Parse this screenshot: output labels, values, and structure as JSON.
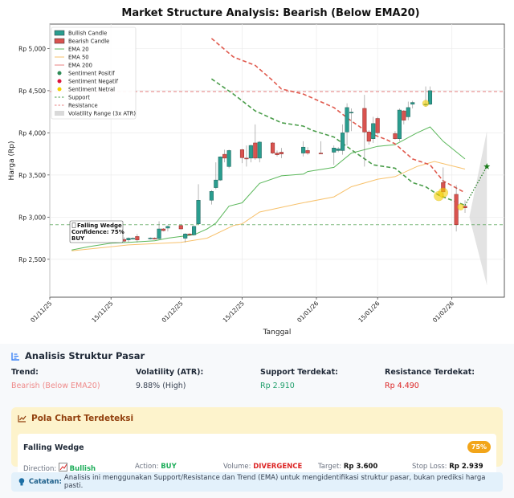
{
  "chart_data": {
    "type": "candlestick",
    "title": "Market Structure Analysis: Bearish (Below EMA20)",
    "xlabel": "Tanggal",
    "ylabel": "Harga (Rp)",
    "xlim": [
      "2025-11-01",
      "2026-02-13"
    ],
    "ylim": [
      2050,
      5290
    ],
    "grid": true,
    "legend_position": "top-left",
    "x_ticks": [
      {
        "date": "2025-11-01",
        "label": "01/11/25"
      },
      {
        "date": "2025-11-15",
        "label": "15/11/25"
      },
      {
        "date": "2025-12-01",
        "label": "01/12/25"
      },
      {
        "date": "2025-12-15",
        "label": "15/12/25"
      },
      {
        "date": "2026-01-01",
        "label": "01/01/26"
      },
      {
        "date": "2026-01-15",
        "label": "15/01/26"
      },
      {
        "date": "2026-02-01",
        "label": "01/02/26"
      }
    ],
    "y_ticks": [
      {
        "value": 2500,
        "label": "Rp 2,500"
      },
      {
        "value": 3000,
        "label": "Rp 3,000"
      },
      {
        "value": 3500,
        "label": "Rp 3,500"
      },
      {
        "value": 4000,
        "label": "Rp 4,000"
      },
      {
        "value": 4500,
        "label": "Rp 4,500"
      },
      {
        "value": 5000,
        "label": "Rp 5,000"
      }
    ],
    "colors": {
      "bull": "#2a9d8f",
      "bear": "#d9534f",
      "ema20": "#5cb85c",
      "ema50": "#f7c16b",
      "ema200": "#e05a4e",
      "support": "#4a9d4a",
      "resistance": "#e88080",
      "neutral": "#f5d000",
      "positive": "#2e8b57",
      "negative": "#dc143c",
      "volatility": "#d9d9d9",
      "target": "#1a7a1a"
    },
    "legend": [
      {
        "label": "Bullish Candle",
        "kind": "patch",
        "color": "#2a9d8f"
      },
      {
        "label": "Bearish Candle",
        "kind": "patch",
        "color": "#d9534f"
      },
      {
        "label": "EMA 20",
        "kind": "line",
        "color": "#5cb85c"
      },
      {
        "label": "EMA 50",
        "kind": "line",
        "color": "#f7c16b"
      },
      {
        "label": "EMA 200",
        "kind": "line",
        "color": "#e88080"
      },
      {
        "label": "Sentiment Positif",
        "kind": "dot",
        "color": "#2e8b57"
      },
      {
        "label": "Sentiment Negatif",
        "kind": "dot",
        "color": "#dc143c"
      },
      {
        "label": "Sentiment Netral",
        "kind": "dot",
        "color": "#f5d000"
      },
      {
        "label": "Support",
        "kind": "dash",
        "color": "#4a9d4a"
      },
      {
        "label": "Resistance",
        "kind": "dash",
        "color": "#e88080"
      },
      {
        "label": "Volatility Range (3x ATR)",
        "kind": "patch",
        "color": "#d9d9d9"
      }
    ],
    "candles": [
      [
        "2025-11-18",
        2735,
        2760,
        2700,
        2715
      ],
      [
        "2025-11-19",
        2730,
        2760,
        2700,
        2750
      ],
      [
        "2025-11-20",
        2745,
        2760,
        2735,
        2748
      ],
      [
        "2025-11-21",
        2770,
        2800,
        2700,
        2730
      ],
      [
        "2025-11-24",
        2745,
        2760,
        2735,
        2752
      ],
      [
        "2025-11-25",
        2750,
        2760,
        2735,
        2740
      ],
      [
        "2025-11-26",
        2745,
        2950,
        2740,
        2860
      ],
      [
        "2025-11-27",
        2860,
        2870,
        2830,
        2840
      ],
      [
        "2025-11-28",
        2870,
        2900,
        2830,
        2890
      ],
      [
        "2025-12-01",
        2900,
        2910,
        2855,
        2860
      ],
      [
        "2025-12-02",
        2750,
        2810,
        2700,
        2800
      ],
      [
        "2025-12-03",
        2800,
        2810,
        2780,
        2790
      ],
      [
        "2025-12-04",
        2790,
        2900,
        2780,
        2890
      ],
      [
        "2025-12-05",
        2920,
        3390,
        2910,
        3200
      ],
      [
        "2025-12-08",
        3200,
        3320,
        3150,
        3305
      ],
      [
        "2025-12-09",
        3350,
        3650,
        3330,
        3440
      ],
      [
        "2025-12-10",
        3440,
        3720,
        3430,
        3715
      ],
      [
        "2025-12-11",
        3745,
        3800,
        3650,
        3700
      ],
      [
        "2025-12-12",
        3600,
        3800,
        3580,
        3790
      ],
      [
        "2025-12-15",
        3800,
        3810,
        3640,
        3705
      ],
      [
        "2025-12-16",
        3700,
        3850,
        3600,
        3690
      ],
      [
        "2025-12-17",
        3700,
        3860,
        3650,
        3850
      ],
      [
        "2025-12-18",
        3880,
        4100,
        3680,
        3700
      ],
      [
        "2025-12-19",
        3700,
        3900,
        3650,
        3890
      ],
      [
        "2025-12-22",
        3880,
        3890,
        3750,
        3760
      ],
      [
        "2025-12-23",
        3760,
        3790,
        3720,
        3740
      ],
      [
        "2025-12-24",
        3770,
        3820,
        3700,
        3750
      ],
      [
        "2025-12-29",
        3760,
        3900,
        3720,
        3830
      ],
      [
        "2025-12-30",
        3790,
        3830,
        3740,
        3760
      ],
      [
        "2026-01-02",
        3760,
        3900,
        3750,
        3755
      ],
      [
        "2026-01-05",
        3770,
        3850,
        3620,
        3820
      ],
      [
        "2026-01-06",
        3790,
        3830,
        3770,
        3810
      ],
      [
        "2026-01-07",
        3790,
        4100,
        3740,
        4000
      ],
      [
        "2026-01-08",
        4010,
        4350,
        3850,
        4300
      ],
      [
        "2026-01-09",
        4240,
        4290,
        4020,
        4245
      ],
      [
        "2026-01-12",
        4290,
        4450,
        3600,
        4010
      ],
      [
        "2026-01-13",
        4010,
        4030,
        3860,
        3900
      ],
      [
        "2026-01-14",
        3930,
        4190,
        3880,
        4110
      ],
      [
        "2026-01-15",
        4170,
        4190,
        3980,
        4000
      ],
      [
        "2026-01-19",
        3990,
        4020,
        3920,
        3930
      ],
      [
        "2026-01-20",
        3930,
        4290,
        3900,
        4270
      ],
      [
        "2026-01-21",
        4260,
        4270,
        4100,
        4150
      ],
      [
        "2026-01-22",
        4190,
        4370,
        4150,
        4300
      ],
      [
        "2026-01-23",
        4340,
        4380,
        4290,
        4360
      ],
      [
        "2026-01-26",
        4330,
        4550,
        4310,
        4340
      ],
      [
        "2026-01-27",
        4340,
        4550,
        4330,
        4500
      ],
      [
        "2026-01-30",
        3410,
        3590,
        3250,
        3300
      ],
      [
        "2026-02-02",
        3270,
        3380,
        2830,
        2910
      ],
      [
        "2026-02-04",
        3130,
        3200,
        3050,
        3110
      ]
    ],
    "sentiment_neutral": [
      [
        "2026-01-26",
        4350
      ],
      [
        "2026-01-29",
        3250
      ],
      [
        "2026-01-30",
        3290
      ],
      [
        "2026-02-03",
        3120
      ]
    ],
    "ema20": [
      [
        "2025-11-06",
        2610
      ],
      [
        "2025-11-10",
        2650
      ],
      [
        "2025-11-15",
        2690
      ],
      [
        "2025-11-19",
        2700
      ],
      [
        "2025-11-25",
        2720
      ],
      [
        "2025-11-28",
        2750
      ],
      [
        "2025-12-01",
        2770
      ],
      [
        "2025-12-04",
        2790
      ],
      [
        "2025-12-07",
        2860
      ],
      [
        "2025-12-09",
        2930
      ],
      [
        "2025-12-12",
        3130
      ],
      [
        "2025-12-15",
        3170
      ],
      [
        "2025-12-19",
        3400
      ],
      [
        "2025-12-24",
        3490
      ],
      [
        "2025-12-29",
        3510
      ],
      [
        "2025-12-30",
        3540
      ],
      [
        "2026-01-05",
        3590
      ],
      [
        "2026-01-09",
        3760
      ],
      [
        "2026-01-15",
        3840
      ],
      [
        "2026-01-19",
        3860
      ],
      [
        "2026-01-24",
        4000
      ],
      [
        "2026-01-27",
        4070
      ],
      [
        "2026-01-30",
        3900
      ],
      [
        "2026-02-04",
        3690
      ]
    ],
    "ema50": [
      [
        "2025-11-06",
        2600
      ],
      [
        "2025-11-19",
        2670
      ],
      [
        "2025-12-01",
        2700
      ],
      [
        "2025-12-07",
        2750
      ],
      [
        "2025-12-13",
        2900
      ],
      [
        "2025-12-15",
        2920
      ],
      [
        "2025-12-19",
        3060
      ],
      [
        "2025-12-28",
        3160
      ],
      [
        "2026-01-05",
        3240
      ],
      [
        "2026-01-09",
        3360
      ],
      [
        "2026-01-15",
        3450
      ],
      [
        "2026-01-19",
        3480
      ],
      [
        "2026-01-24",
        3600
      ],
      [
        "2026-01-28",
        3660
      ],
      [
        "2026-02-04",
        3570
      ]
    ],
    "ema200": [
      [
        "2025-12-08",
        5120
      ],
      [
        "2025-12-13",
        4900
      ],
      [
        "2025-12-18",
        4800
      ],
      [
        "2025-12-22",
        4620
      ],
      [
        "2025-12-24",
        4520
      ],
      [
        "2025-12-29",
        4460
      ],
      [
        "2026-01-05",
        4300
      ],
      [
        "2026-01-09",
        4140
      ],
      [
        "2026-01-13",
        4000
      ],
      [
        "2026-01-17",
        3920
      ],
      [
        "2026-01-19",
        3870
      ],
      [
        "2026-01-23",
        3690
      ],
      [
        "2026-01-27",
        3620
      ],
      [
        "2026-01-30",
        3430
      ],
      [
        "2026-02-04",
        3290
      ]
    ],
    "support_trend": [
      [
        "2025-12-08",
        4640
      ],
      [
        "2025-12-13",
        4460
      ],
      [
        "2025-12-18",
        4260
      ],
      [
        "2025-12-24",
        4120
      ],
      [
        "2025-12-29",
        4080
      ],
      [
        "2025-12-31",
        4030
      ],
      [
        "2026-01-05",
        3950
      ],
      [
        "2026-01-09",
        3800
      ],
      [
        "2026-01-14",
        3620
      ],
      [
        "2026-01-19",
        3580
      ],
      [
        "2026-01-23",
        3410
      ],
      [
        "2026-01-26",
        3360
      ],
      [
        "2026-01-29",
        3260
      ],
      [
        "2026-02-04",
        3140
      ]
    ],
    "support_level": 2910,
    "resistance_level": 4490,
    "projection": [
      [
        "2026-02-04",
        3140
      ],
      [
        "2026-02-09",
        3600
      ]
    ],
    "volatility_range": {
      "start": [
        "2026-02-05",
        3000
      ],
      "end_date": "2026-02-09",
      "upper": 4020,
      "lower": 2190
    },
    "annotation": {
      "line1": "Falling Wedge",
      "line2": "Confidence: 75%",
      "line3": "BUY",
      "date": "2025-11-06",
      "value": 2850
    }
  },
  "analysis": {
    "title": "Analisis Struktur Pasar",
    "stats": [
      {
        "label": "Trend:",
        "value": "Bearish (Below EMA20)",
        "color": "#ef8a8a"
      },
      {
        "label": "Volatility (ATR):",
        "value": "9.88% (High)",
        "color": "#374151"
      },
      {
        "label": "Support Terdekat:",
        "value": "Rp 2.910",
        "color": "#1e9e6a"
      },
      {
        "label": "Resistance Terdekat:",
        "value": "Rp 4.490",
        "color": "#dc2626"
      }
    ],
    "pattern_section": {
      "title": "Pola Chart Terdeteksi",
      "name": "Falling Wedge",
      "confidence": "75%",
      "direction_label": "Direction:",
      "direction_value": "Bullish",
      "action_label": "Action:",
      "action_value": "BUY",
      "volume_label": "Volume:",
      "volume_value": "DIVERGENCE",
      "target_label": "Target:",
      "target_value": "Rp 3.600",
      "stoploss_label": "Stop Loss:",
      "stoploss_value": "Rp 2.939"
    },
    "note_label": "Catatan:",
    "note_text": "Analisis ini menggunakan Support/Resistance dan Trend (EMA) untuk mengidentifikasi struktur pasar, bukan prediksi harga pasti."
  }
}
